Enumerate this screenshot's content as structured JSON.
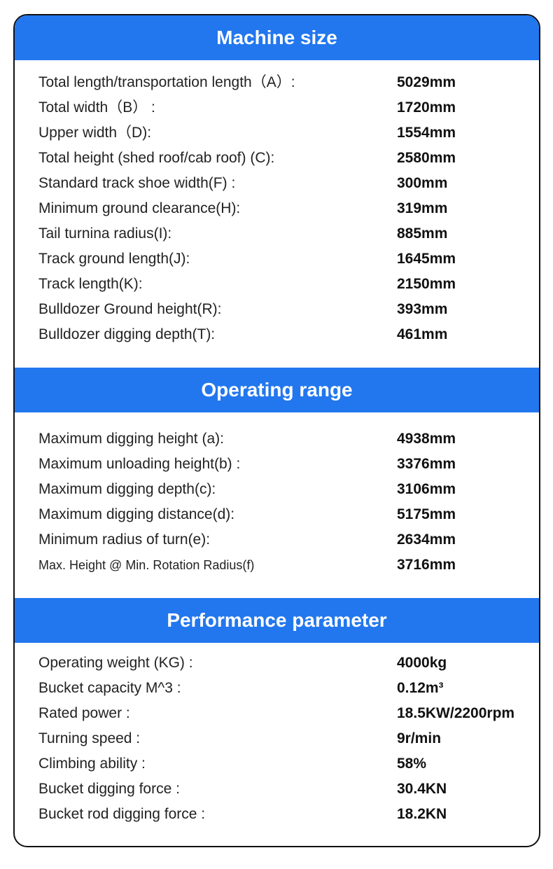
{
  "sections": [
    {
      "title": "Machine size",
      "rows": [
        {
          "label": "Total length/transportation length（A）:",
          "value": "5029mm"
        },
        {
          "label": "Total width（B） :",
          "value": "1720mm"
        },
        {
          "label": "Upper width（D):",
          "value": "1554mm"
        },
        {
          "label": "Total height (shed roof/cab roof) (C):",
          "value": "2580mm"
        },
        {
          "label": "Standard track shoe width(F) :",
          "value": "300mm"
        },
        {
          "label": "Minimum ground clearance(H):",
          "value": "319mm"
        },
        {
          "label": "Tail turnina radius(I):",
          "value": "885mm"
        },
        {
          "label": "Track ground length(J):",
          "value": "1645mm"
        },
        {
          "label": "Track length(K):",
          "value": "2150mm"
        },
        {
          "label": "Bulldozer Ground height(R):",
          "value": "393mm"
        },
        {
          "label": "Bulldozer digging depth(T):",
          "value": "461mm"
        }
      ]
    },
    {
      "title": "Operating range",
      "rows": [
        {
          "label": "Maximum digging height (a):",
          "value": "4938mm"
        },
        {
          "label": "Maximum unloading height(b) :",
          "value": "3376mm"
        },
        {
          "label": "Maximum digging depth(c):",
          "value": "3106mm"
        },
        {
          "label": "Maximum digging distance(d):",
          "value": "5175mm"
        },
        {
          "label": "Minimum radius of turn(e):",
          "value": "2634mm"
        },
        {
          "label": "Max. Height @ Min. Rotation Radius(f)",
          "value": "3716mm"
        }
      ]
    },
    {
      "title": "Performance parameter",
      "rows": [
        {
          "label": "Operating weight (KG) :",
          "value": "4000kg"
        },
        {
          "label": "Bucket capacity M^3 :",
          "value": "0.12m³"
        },
        {
          "label": "Rated power :",
          "value": "18.5KW/2200rpm"
        },
        {
          "label": "Turning speed :",
          "value": "9r/min"
        },
        {
          "label": "Climbing ability :",
          "value": "58%"
        },
        {
          "label": "Bucket digging force :",
          "value": "30.4KN"
        },
        {
          "label": "Bucket rod digging force :",
          "value": "18.2KN"
        }
      ]
    }
  ],
  "colors": {
    "header": "#2277ee",
    "border": "#111111"
  }
}
